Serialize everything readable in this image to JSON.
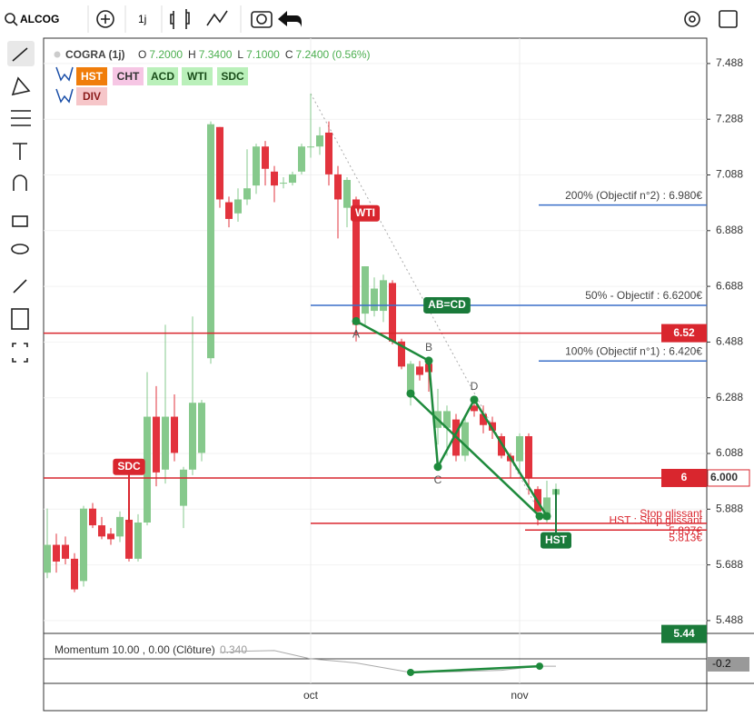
{
  "toolbar": {
    "symbol": "ALCOG",
    "interval": "1j"
  },
  "indicator_buttons": [
    {
      "text": "HST",
      "color": "#f07d0a",
      "text_color": "#ffffff"
    },
    {
      "text": "CHT",
      "color": "#f6c6e4",
      "text_color": "#333333"
    },
    {
      "text": "ACD",
      "color": "#baf0ba",
      "text_color": "#1a4d1a"
    },
    {
      "text": "WTI",
      "color": "#baf0ba",
      "text_color": "#1a4d1a"
    },
    {
      "text": "SDC",
      "color": "#baf0ba",
      "text_color": "#1a4d1a"
    },
    {
      "text": "DIV",
      "color": "#f6c6c9",
      "text_color": "#8a1a1a"
    }
  ],
  "chart_data": {
    "type": "candlestick",
    "title": "COGRA (1j)",
    "ohlc_legend": [
      {
        "key": "O",
        "value": "7.2000"
      },
      {
        "key": "H",
        "value": "7.3400"
      },
      {
        "key": "L",
        "value": "7.1000"
      },
      {
        "key": "C",
        "value": "7.2400 (0.56%)"
      }
    ],
    "categories": [
      null,
      null,
      null,
      null,
      null,
      null,
      null,
      null,
      null,
      null,
      null,
      null,
      null,
      null,
      null,
      null,
      null,
      null,
      null,
      null,
      null,
      null,
      null,
      null,
      null,
      null,
      null,
      null,
      null,
      "oct",
      null,
      null,
      null,
      null,
      null,
      null,
      null,
      null,
      null,
      null,
      null,
      null,
      null,
      null,
      null,
      null,
      null,
      null,
      null,
      null,
      null,
      null,
      "nov",
      null,
      null,
      null,
      null
    ],
    "open": [
      5.66,
      5.76,
      5.76,
      5.71,
      5.63,
      5.89,
      5.83,
      5.8,
      5.79,
      5.85,
      5.71,
      5.84,
      6.22,
      6.03,
      6.22,
      5.9,
      6.03,
      6.09,
      6.43,
      7.26,
      6.99,
      6.95,
      7.0,
      7.05,
      7.19,
      7.1,
      7.06,
      7.06,
      7.1,
      7.19,
      7.19,
      7.24,
      7.09,
      6.97,
      7.0,
      6.59,
      6.6,
      6.6,
      6.7,
      6.49,
      6.3,
      6.4,
      6.41,
      6.18,
      6.18,
      6.21,
      6.08,
      6.26,
      6.23,
      6.2,
      6.15,
      6.08,
      6.06,
      6.15,
      5.96,
      5.85,
      5.94
    ],
    "high": [
      5.89,
      5.8,
      5.79,
      5.73,
      5.9,
      5.91,
      5.86,
      5.82,
      5.88,
      5.87,
      5.87,
      6.38,
      6.33,
      6.55,
      6.3,
      6.04,
      6.58,
      6.28,
      7.28,
      7.26,
      7.01,
      7.04,
      7.18,
      7.2,
      7.21,
      7.12,
      7.08,
      7.1,
      7.2,
      7.38,
      7.26,
      7.28,
      7.12,
      7.08,
      7.01,
      6.76,
      6.72,
      6.73,
      6.71,
      6.5,
      6.42,
      6.42,
      6.42,
      6.32,
      6.26,
      6.23,
      6.22,
      6.29,
      6.26,
      6.22,
      6.16,
      6.09,
      6.16,
      6.16,
      5.97,
      5.99,
      5.98
    ],
    "low": [
      5.64,
      5.66,
      5.69,
      5.59,
      5.61,
      5.82,
      5.78,
      5.76,
      5.77,
      5.7,
      5.7,
      5.83,
      5.97,
      5.98,
      6.06,
      5.82,
      6.01,
      6.06,
      6.41,
      6.97,
      6.9,
      6.92,
      6.98,
      7.02,
      7.05,
      6.99,
      7.04,
      7.05,
      7.09,
      7.15,
      7.16,
      7.05,
      6.86,
      6.9,
      6.49,
      6.55,
      6.58,
      6.56,
      6.48,
      6.39,
      6.26,
      6.35,
      6.31,
      6.12,
      6.08,
      6.06,
      6.06,
      6.22,
      6.16,
      6.14,
      6.07,
      6.0,
      6.02,
      5.94,
      5.83,
      5.84,
      5.87
    ],
    "close": [
      5.76,
      5.7,
      5.71,
      5.6,
      5.89,
      5.83,
      5.79,
      5.78,
      5.86,
      5.71,
      5.84,
      6.22,
      6.02,
      6.22,
      6.09,
      6.03,
      6.27,
      6.27,
      7.27,
      7.0,
      6.93,
      7.0,
      7.04,
      7.19,
      7.11,
      7.05,
      7.06,
      7.09,
      7.19,
      7.19,
      7.23,
      7.09,
      7.0,
      7.07,
      6.55,
      6.76,
      6.68,
      6.71,
      6.49,
      6.4,
      6.41,
      6.37,
      6.38,
      6.24,
      6.24,
      6.08,
      6.2,
      6.24,
      6.19,
      6.17,
      6.08,
      6.06,
      6.15,
      6.0,
      5.88,
      5.93,
      5.96
    ],
    "up_color": "#86c98c",
    "down_color": "#e2333d",
    "ylim": [
      5.442,
      7.579
    ],
    "yticks": [
      5.488,
      5.688,
      5.888,
      6.088,
      6.288,
      6.488,
      6.688,
      6.888,
      7.088,
      7.288,
      7.488
    ],
    "grid": true,
    "levels": [
      {
        "value": 6.52,
        "color": "#d9262e",
        "box_label": "6.52"
      },
      {
        "value": 6,
        "color": "#d9262e",
        "box_label": "6",
        "axis_label": "6.000"
      },
      {
        "value": 5.837,
        "color": "#d9262e",
        "from": 29,
        "label": "Stop glissant",
        "price_label": "5.837€"
      },
      {
        "value": 5.813,
        "color": "#d9262e",
        "from": 52.6,
        "label": "HST : Stop glissant",
        "price_label": "5.813€"
      },
      {
        "value": 6.98,
        "color": "#3a6fc9",
        "from": 54.1,
        "label": "200% (Objectif n°2) : 6.980€"
      },
      {
        "value": 6.62,
        "color": "#3a6fc9",
        "from": 29,
        "label": "50% - Objectif : 6.6200€"
      },
      {
        "value": 6.42,
        "color": "#3a6fc9",
        "from": 54.1,
        "label": "100% (Objectif n°1) : 6.420€"
      },
      {
        "value": 5.44,
        "color": "#1a7a3a",
        "box_label": "5.44",
        "line": false
      }
    ],
    "tags": [
      {
        "text": "WTI",
        "x": 35,
        "value": 6.95,
        "color": "#d9262e"
      },
      {
        "text": "AB=CD",
        "x": 44,
        "value": 6.62,
        "color": "#1a7a3a"
      },
      {
        "text": "SDC",
        "x": 9,
        "value": 6.04,
        "to": 5.84,
        "color": "#d9262e"
      },
      {
        "text": "HST",
        "x": 56,
        "value": 5.776,
        "to": 5.96,
        "color": "#1a7a3a"
      }
    ],
    "trendline": {
      "x": [
        29,
        54.3
      ],
      "values": [
        7.38,
        5.87
      ],
      "color": "#aaaaaa"
    },
    "pattern": {
      "color": "#1e8a3c",
      "points": [
        {
          "x": 34,
          "value": 6.563,
          "label": "A",
          "label_pos": "below"
        },
        {
          "x": 42,
          "value": 6.421,
          "label": "B",
          "label_pos": "above"
        },
        {
          "x": 43,
          "value": 6.04,
          "label": "C",
          "label_pos": "below"
        },
        {
          "x": 47,
          "value": 6.281,
          "label": "D",
          "label_pos": "above"
        },
        {
          "x": 55,
          "value": 5.863
        }
      ],
      "line2": {
        "x": [
          40,
          54.2
        ],
        "values": [
          6.303,
          5.863
        ]
      }
    },
    "momentum": {
      "title": "Momentum 10.00 , 0.00 (Clôture)",
      "value_text": "0.340",
      "ylim": [
        -0.9,
        0.93
      ],
      "x": [
        19,
        22,
        25,
        29,
        34,
        40,
        45,
        50,
        54,
        56
      ],
      "values": [
        0.23,
        0.28,
        0.3,
        0.0,
        -0.15,
        -0.5,
        -0.47,
        -0.42,
        -0.27,
        -0.27
      ],
      "trend": {
        "x": [
          40,
          54.2
        ],
        "values": [
          -0.5,
          -0.27
        ]
      },
      "axis_value": {
        "value": -0.2,
        "label": "-0.2"
      }
    }
  }
}
